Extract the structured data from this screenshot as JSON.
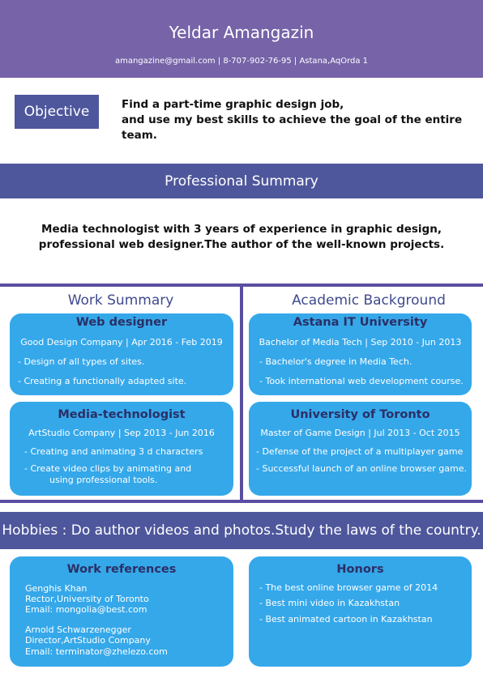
{
  "header": {
    "name": "Yeldar Amangazin",
    "contact": "amangazine@gmail.com | 8-707-902-76-95 | Astana,AqOrda 1"
  },
  "objective": {
    "label": "Objective",
    "line1": "Find a part-time graphic design job,",
    "line2": "and use my best skills to achieve the goal of the entire team."
  },
  "professional_summary": {
    "title": "Professional Summary",
    "line1": "Media technologist with 3 years of experience in graphic design,",
    "line2": "professional web designer.The author of the well-known projects."
  },
  "work_summary": {
    "title": "Work Summary",
    "jobs": [
      {
        "title": "Web designer",
        "company": "Good Design Company | Apr 2016 - Feb 2019",
        "duties": [
          "- Design of all types of sites.",
          "- Creating a functionally adapted site."
        ]
      },
      {
        "title": "Media-technologist",
        "company": "ArtStudio Company | Sep 2013 - Jun 2016",
        "duties": [
          "- Creating and animating 3 d characters",
          "- Create video clips by animating and",
          "using professional tools."
        ]
      }
    ]
  },
  "academic": {
    "title": "Academic Background",
    "schools": [
      {
        "name": "Astana IT University",
        "degree": "Bachelor of Media Tech | Sep 2010 - Jun 2013",
        "notes": [
          "- Bachelor's degree in Media Tech.",
          "- Took international web development course."
        ]
      },
      {
        "name": "University of Toronto",
        "degree": "Master of Game Design | Jul 2013 - Oct 2015",
        "notes": [
          "- Defense of the project of a multiplayer game",
          "- Successful launch of an online browser game."
        ]
      }
    ]
  },
  "hobbies": "Hobbies : Do author videos and photos.Study the laws of the country.",
  "references": {
    "title": "Work references",
    "people": [
      {
        "name": "Genghis Khan",
        "role": "Rector,University of Toronto",
        "email": "Email: mongolia@best.com"
      },
      {
        "name": "Arnold Schwarzenegger",
        "role": "Director,ArtStudio Company",
        "email": "Email: terminator@zhelezo.com"
      }
    ]
  },
  "honors": {
    "title": "Honors",
    "items": [
      "- The best online browser game of 2014",
      "- Best mini video in Kazakhstan",
      "- Best animated cartoon in Kazakhstan"
    ]
  },
  "colors": {
    "header": "#7663a8",
    "bar": "#4e579c",
    "card": "#35a8ea",
    "card_title": "#2b2f66"
  }
}
